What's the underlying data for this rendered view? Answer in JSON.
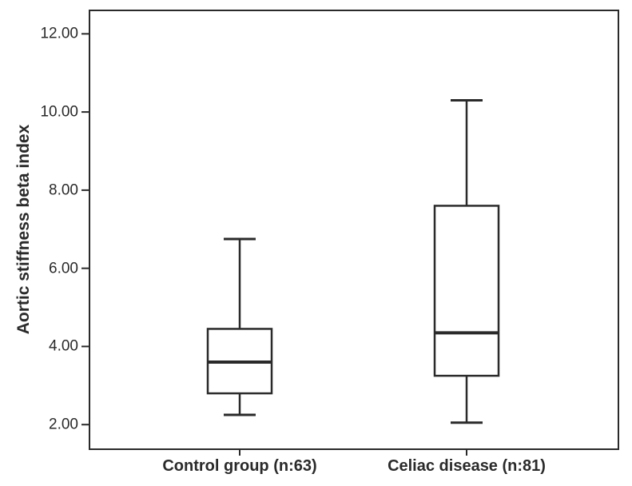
{
  "figure": {
    "background": "#ffffff",
    "line_color": "#2a2a2a",
    "text_color": "#2a2a2a"
  },
  "chart_data": {
    "type": "boxplot",
    "title": "",
    "xlabel": "",
    "ylabel": "Aortic stiffness beta index",
    "categories": [
      "Control group (n:63)",
      "Celiac disease (n:81)"
    ],
    "ylim": [
      1.37,
      12.6
    ],
    "grid": false,
    "legend": false,
    "yticks": [
      {
        "value": 2,
        "label": "2.00"
      },
      {
        "value": 4,
        "label": "4.00"
      },
      {
        "value": 6,
        "label": "6.00"
      },
      {
        "value": 8,
        "label": "8.00"
      },
      {
        "value": 10,
        "label": "10.00"
      },
      {
        "value": 12,
        "label": "12.00"
      }
    ],
    "series": [
      {
        "name": "Control group (n:63)",
        "whisker_low": 2.25,
        "q1": 2.8,
        "median": 3.6,
        "q3": 4.45,
        "whisker_high": 6.75
      },
      {
        "name": "Celiac disease (n:81)",
        "whisker_low": 2.05,
        "q1": 3.25,
        "median": 4.35,
        "q3": 7.6,
        "whisker_high": 10.3
      }
    ]
  }
}
